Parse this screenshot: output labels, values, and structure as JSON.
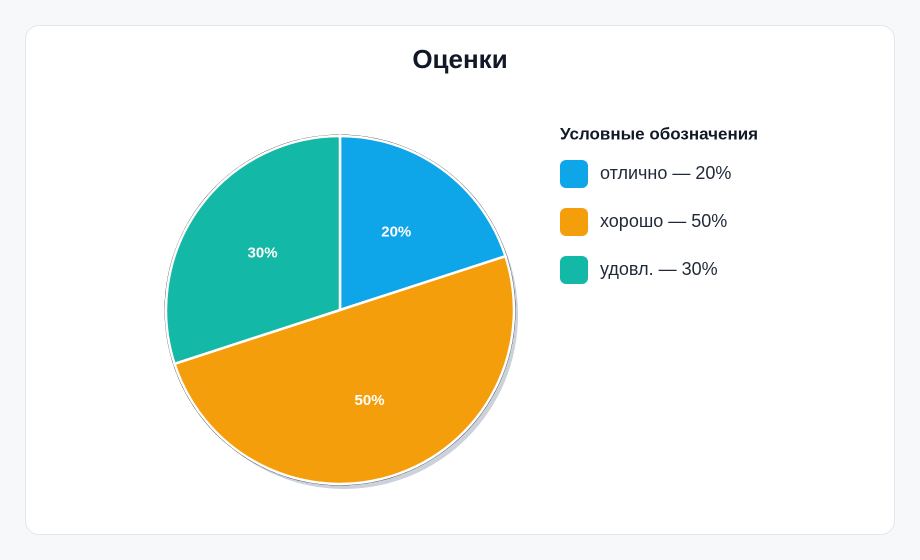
{
  "chart_data": {
    "type": "pie",
    "title": "Оценки",
    "categories": [
      "отлично",
      "хорошо",
      "удовл."
    ],
    "values": [
      20,
      50,
      30
    ],
    "value_labels": [
      "20%",
      "50%",
      "30%"
    ],
    "colors": [
      "#0ea5e9",
      "#f59e0b",
      "#14b8a6"
    ],
    "legend_title": "Условные обозначения",
    "legend_labels": [
      "отлично — 20%",
      "хорошо — 50%",
      "удовл. — 30%"
    ],
    "legend_position": "right"
  }
}
